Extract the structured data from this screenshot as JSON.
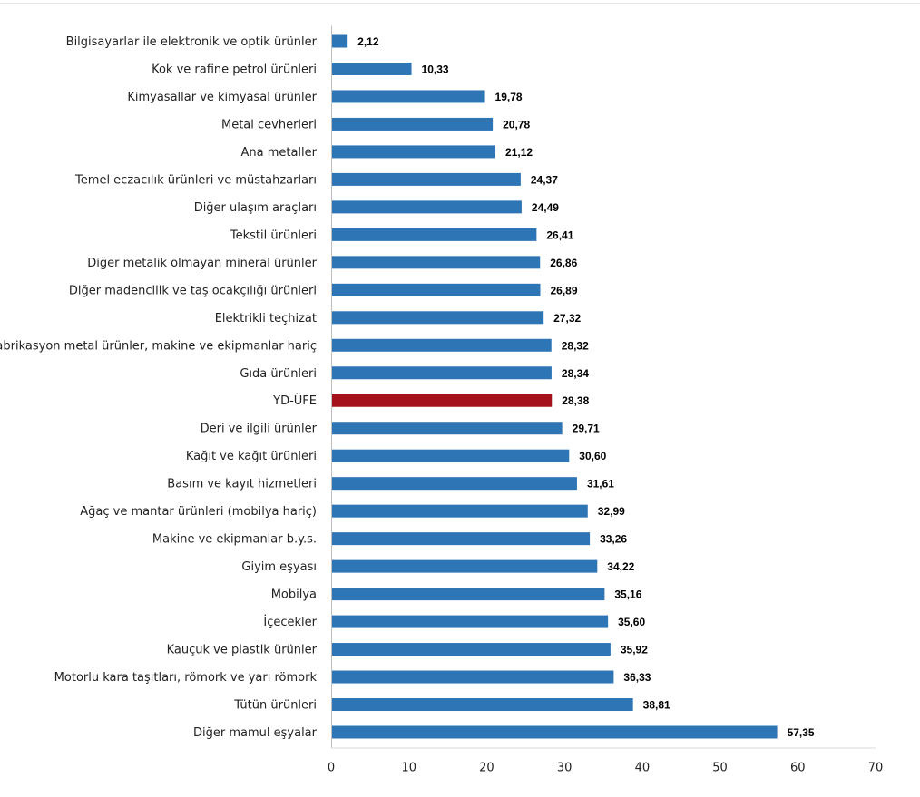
{
  "chart_data": {
    "type": "bar",
    "orientation": "horizontal",
    "title": "",
    "xlabel": "",
    "ylabel": "",
    "xlim": [
      0,
      70
    ],
    "xticks": [
      "0",
      "10",
      "20",
      "30",
      "40",
      "50",
      "60",
      "70"
    ],
    "grid": false,
    "colors": {
      "default": "#2e75b6",
      "highlight": "#a5121c"
    },
    "bars": [
      {
        "label": "Bilgisayarlar ile elektronik ve optik ürünler",
        "value": 2.12,
        "display": "2,12",
        "highlight": false
      },
      {
        "label": "Kok ve rafine petrol ürünleri",
        "value": 10.33,
        "display": "10,33",
        "highlight": false
      },
      {
        "label": "Kimyasallar ve kimyasal ürünler",
        "value": 19.78,
        "display": "19,78",
        "highlight": false
      },
      {
        "label": "Metal cevherleri",
        "value": 20.78,
        "display": "20,78",
        "highlight": false
      },
      {
        "label": "Ana metaller",
        "value": 21.12,
        "display": "21,12",
        "highlight": false
      },
      {
        "label": "Temel eczacılık ürünleri ve müstahzarları",
        "value": 24.37,
        "display": "24,37",
        "highlight": false
      },
      {
        "label": "Diğer ulaşım araçları",
        "value": 24.49,
        "display": "24,49",
        "highlight": false
      },
      {
        "label": "Tekstil ürünleri",
        "value": 26.41,
        "display": "26,41",
        "highlight": false
      },
      {
        "label": "Diğer metalik olmayan mineral ürünler",
        "value": 26.86,
        "display": "26,86",
        "highlight": false
      },
      {
        "label": "Diğer madencilik ve taş ocakçılığı ürünleri",
        "value": 26.89,
        "display": "26,89",
        "highlight": false
      },
      {
        "label": "Elektrikli teçhizat",
        "value": 27.32,
        "display": "27,32",
        "highlight": false
      },
      {
        "label": "Fabrikasyon metal ürünler, makine ve ekipmanlar hariç",
        "value": 28.32,
        "display": "28,32",
        "highlight": false
      },
      {
        "label": "Gıda ürünleri",
        "value": 28.34,
        "display": "28,34",
        "highlight": false
      },
      {
        "label": "YD-ÜFE",
        "value": 28.38,
        "display": "28,38",
        "highlight": true
      },
      {
        "label": "Deri ve ilgili ürünler",
        "value": 29.71,
        "display": "29,71",
        "highlight": false
      },
      {
        "label": "Kağıt ve kağıt ürünleri",
        "value": 30.6,
        "display": "30,60",
        "highlight": false
      },
      {
        "label": "Basım ve kayıt hizmetleri",
        "value": 31.61,
        "display": "31,61",
        "highlight": false
      },
      {
        "label": "Ağaç ve mantar ürünleri (mobilya hariç)",
        "value": 32.99,
        "display": "32,99",
        "highlight": false
      },
      {
        "label": "Makine ve ekipmanlar b.y.s.",
        "value": 33.26,
        "display": "33,26",
        "highlight": false
      },
      {
        "label": "Giyim eşyası",
        "value": 34.22,
        "display": "34,22",
        "highlight": false
      },
      {
        "label": "Mobilya",
        "value": 35.16,
        "display": "35,16",
        "highlight": false
      },
      {
        "label": "İçecekler",
        "value": 35.6,
        "display": "35,60",
        "highlight": false
      },
      {
        "label": "Kauçuk ve plastik ürünler",
        "value": 35.92,
        "display": "35,92",
        "highlight": false
      },
      {
        "label": "Motorlu kara taşıtları, römork ve yarı römork",
        "value": 36.33,
        "display": "36,33",
        "highlight": false
      },
      {
        "label": "Tütün ürünleri",
        "value": 38.81,
        "display": "38,81",
        "highlight": false
      },
      {
        "label": "Diğer mamul eşyalar",
        "value": 57.35,
        "display": "57,35",
        "highlight": false
      }
    ]
  }
}
